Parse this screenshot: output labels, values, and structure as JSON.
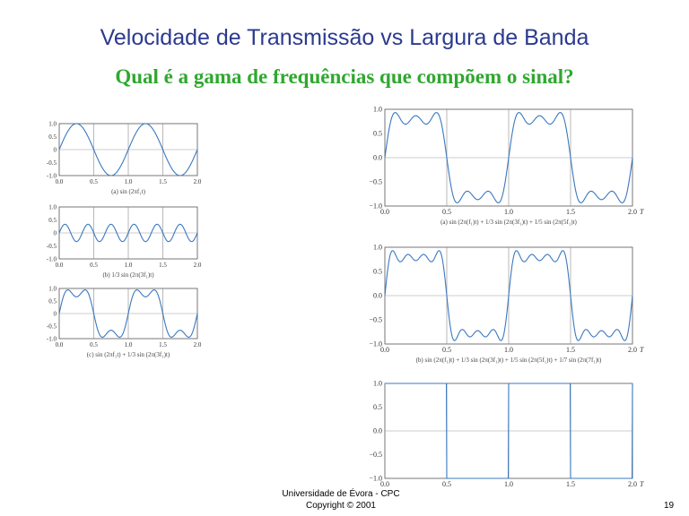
{
  "slide": {
    "title": "Velocidade de Transmissão vs Largura de Banda",
    "subtitle": "Qual é a gama de frequências que compõem o sinal?",
    "footer_line1": "Universidade de Évora - CPC",
    "footer_line2": "Copyright © 2001",
    "page_number": "19"
  },
  "colors": {
    "title": "#2b3a8f",
    "subtitle": "#2fa82f",
    "curve": "#3a78c0",
    "axis": "#555555"
  },
  "chart_data": [
    {
      "type": "line",
      "xlabel": "",
      "ylabel": "",
      "xlim": [
        0,
        2.0
      ],
      "ylim": [
        -1.0,
        1.0
      ],
      "xticks": [
        "0.0",
        "0.5",
        "1.0",
        "1.5",
        "2.0"
      ],
      "yticks": [
        "1.0",
        "0.5",
        "0",
        "-0.5",
        "-1.0"
      ],
      "caption": "(a) sin (2πf₁t)",
      "harmonics": [
        [
          1,
          1
        ]
      ]
    },
    {
      "type": "line",
      "xlabel": "",
      "ylabel": "",
      "xlim": [
        0,
        2.0
      ],
      "ylim": [
        -1.0,
        1.0
      ],
      "xticks": [
        "0.0",
        "0.5",
        "1.0",
        "1.5",
        "2.0"
      ],
      "yticks": [
        "1.0",
        "0.5",
        "0",
        "-0.5",
        "-1.0"
      ],
      "caption": "(b) 1/3 sin (2π(3f₁)t)",
      "harmonics": [
        [
          3,
          0.333
        ]
      ]
    },
    {
      "type": "line",
      "xlabel": "",
      "ylabel": "",
      "xlim": [
        0,
        2.0
      ],
      "ylim": [
        -1.0,
        1.0
      ],
      "xticks": [
        "0.0",
        "0.5",
        "1.0",
        "1.5",
        "2.0"
      ],
      "yticks": [
        "1.0",
        "0.5",
        "0",
        "-0.5",
        "-1.0"
      ],
      "caption": "(c) sin (2πf₁t) + 1/3 sin (2π(3f₁)t)",
      "harmonics": [
        [
          1,
          1
        ],
        [
          3,
          0.333
        ]
      ]
    },
    {
      "type": "line",
      "xlabel": "T",
      "ylabel": "",
      "xlim": [
        0,
        2.0
      ],
      "ylim": [
        -1.0,
        1.0
      ],
      "xticks": [
        "0.0",
        "0.5",
        "1.0",
        "1.5",
        "2.0"
      ],
      "yticks": [
        "1.0",
        "0.5",
        "0.0",
        "−0.5",
        "−1.0"
      ],
      "caption": "(a) sin (2π(f₁)t) + 1/3 sin (2π(3f₁)t) + 1/5 sin (2π(5f₁)t)",
      "harmonics": [
        [
          1,
          1
        ],
        [
          3,
          0.333
        ],
        [
          5,
          0.2
        ]
      ]
    },
    {
      "type": "line",
      "xlabel": "T",
      "ylabel": "",
      "xlim": [
        0,
        2.0
      ],
      "ylim": [
        -1.0,
        1.0
      ],
      "xticks": [
        "0.0",
        "0.5",
        "1.0",
        "1.5",
        "2.0"
      ],
      "yticks": [
        "1.0",
        "0.5",
        "0.0",
        "−0.5",
        "−1.0"
      ],
      "caption": "(b) sin (2π(f₁)t) + 1/3 sin (2π(3f₁)t) + 1/5 sin (2π(5f₁)t) + 1/7 sin (2π(7f₁)t)",
      "harmonics": [
        [
          1,
          1
        ],
        [
          3,
          0.333
        ],
        [
          5,
          0.2
        ],
        [
          7,
          0.143
        ]
      ]
    },
    {
      "type": "line",
      "xlabel": "T",
      "ylabel": "",
      "xlim": [
        0,
        2.0
      ],
      "ylim": [
        -1.0,
        1.0
      ],
      "xticks": [
        "0.0",
        "0.5",
        "1.0",
        "1.5",
        "2.0"
      ],
      "yticks": [
        "1.0",
        "0.5",
        "0.0",
        "−0.5",
        "−1.0"
      ],
      "caption": "",
      "square": true
    }
  ]
}
